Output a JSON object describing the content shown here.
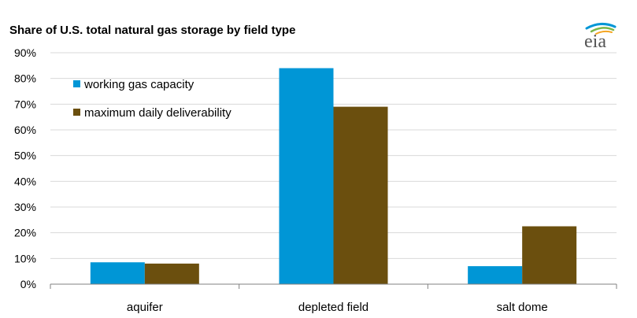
{
  "header": {
    "logo_text": "eia"
  },
  "chart_data": {
    "type": "bar",
    "title": "Share of U.S. total natural gas storage by field type",
    "categories": [
      "aquifer",
      "depleted field",
      "salt dome"
    ],
    "series": [
      {
        "name": "working gas capacity",
        "values": [
          8.5,
          84.0,
          7.0
        ]
      },
      {
        "name": "maximum daily deliverability",
        "values": [
          8.0,
          69.0,
          22.5
        ]
      }
    ],
    "ylim": [
      0,
      90
    ],
    "yticks": [
      "0%",
      "10%",
      "20%",
      "30%",
      "40%",
      "50%",
      "60%",
      "70%",
      "80%",
      "90%"
    ],
    "xlabel": "",
    "ylabel": "",
    "grid": true,
    "legend_position": "top-left",
    "colors": {
      "series_1": "#0096d6",
      "series_2": "#6b4f0e",
      "grid": "#d9d9d9",
      "axis": "#808080"
    }
  }
}
